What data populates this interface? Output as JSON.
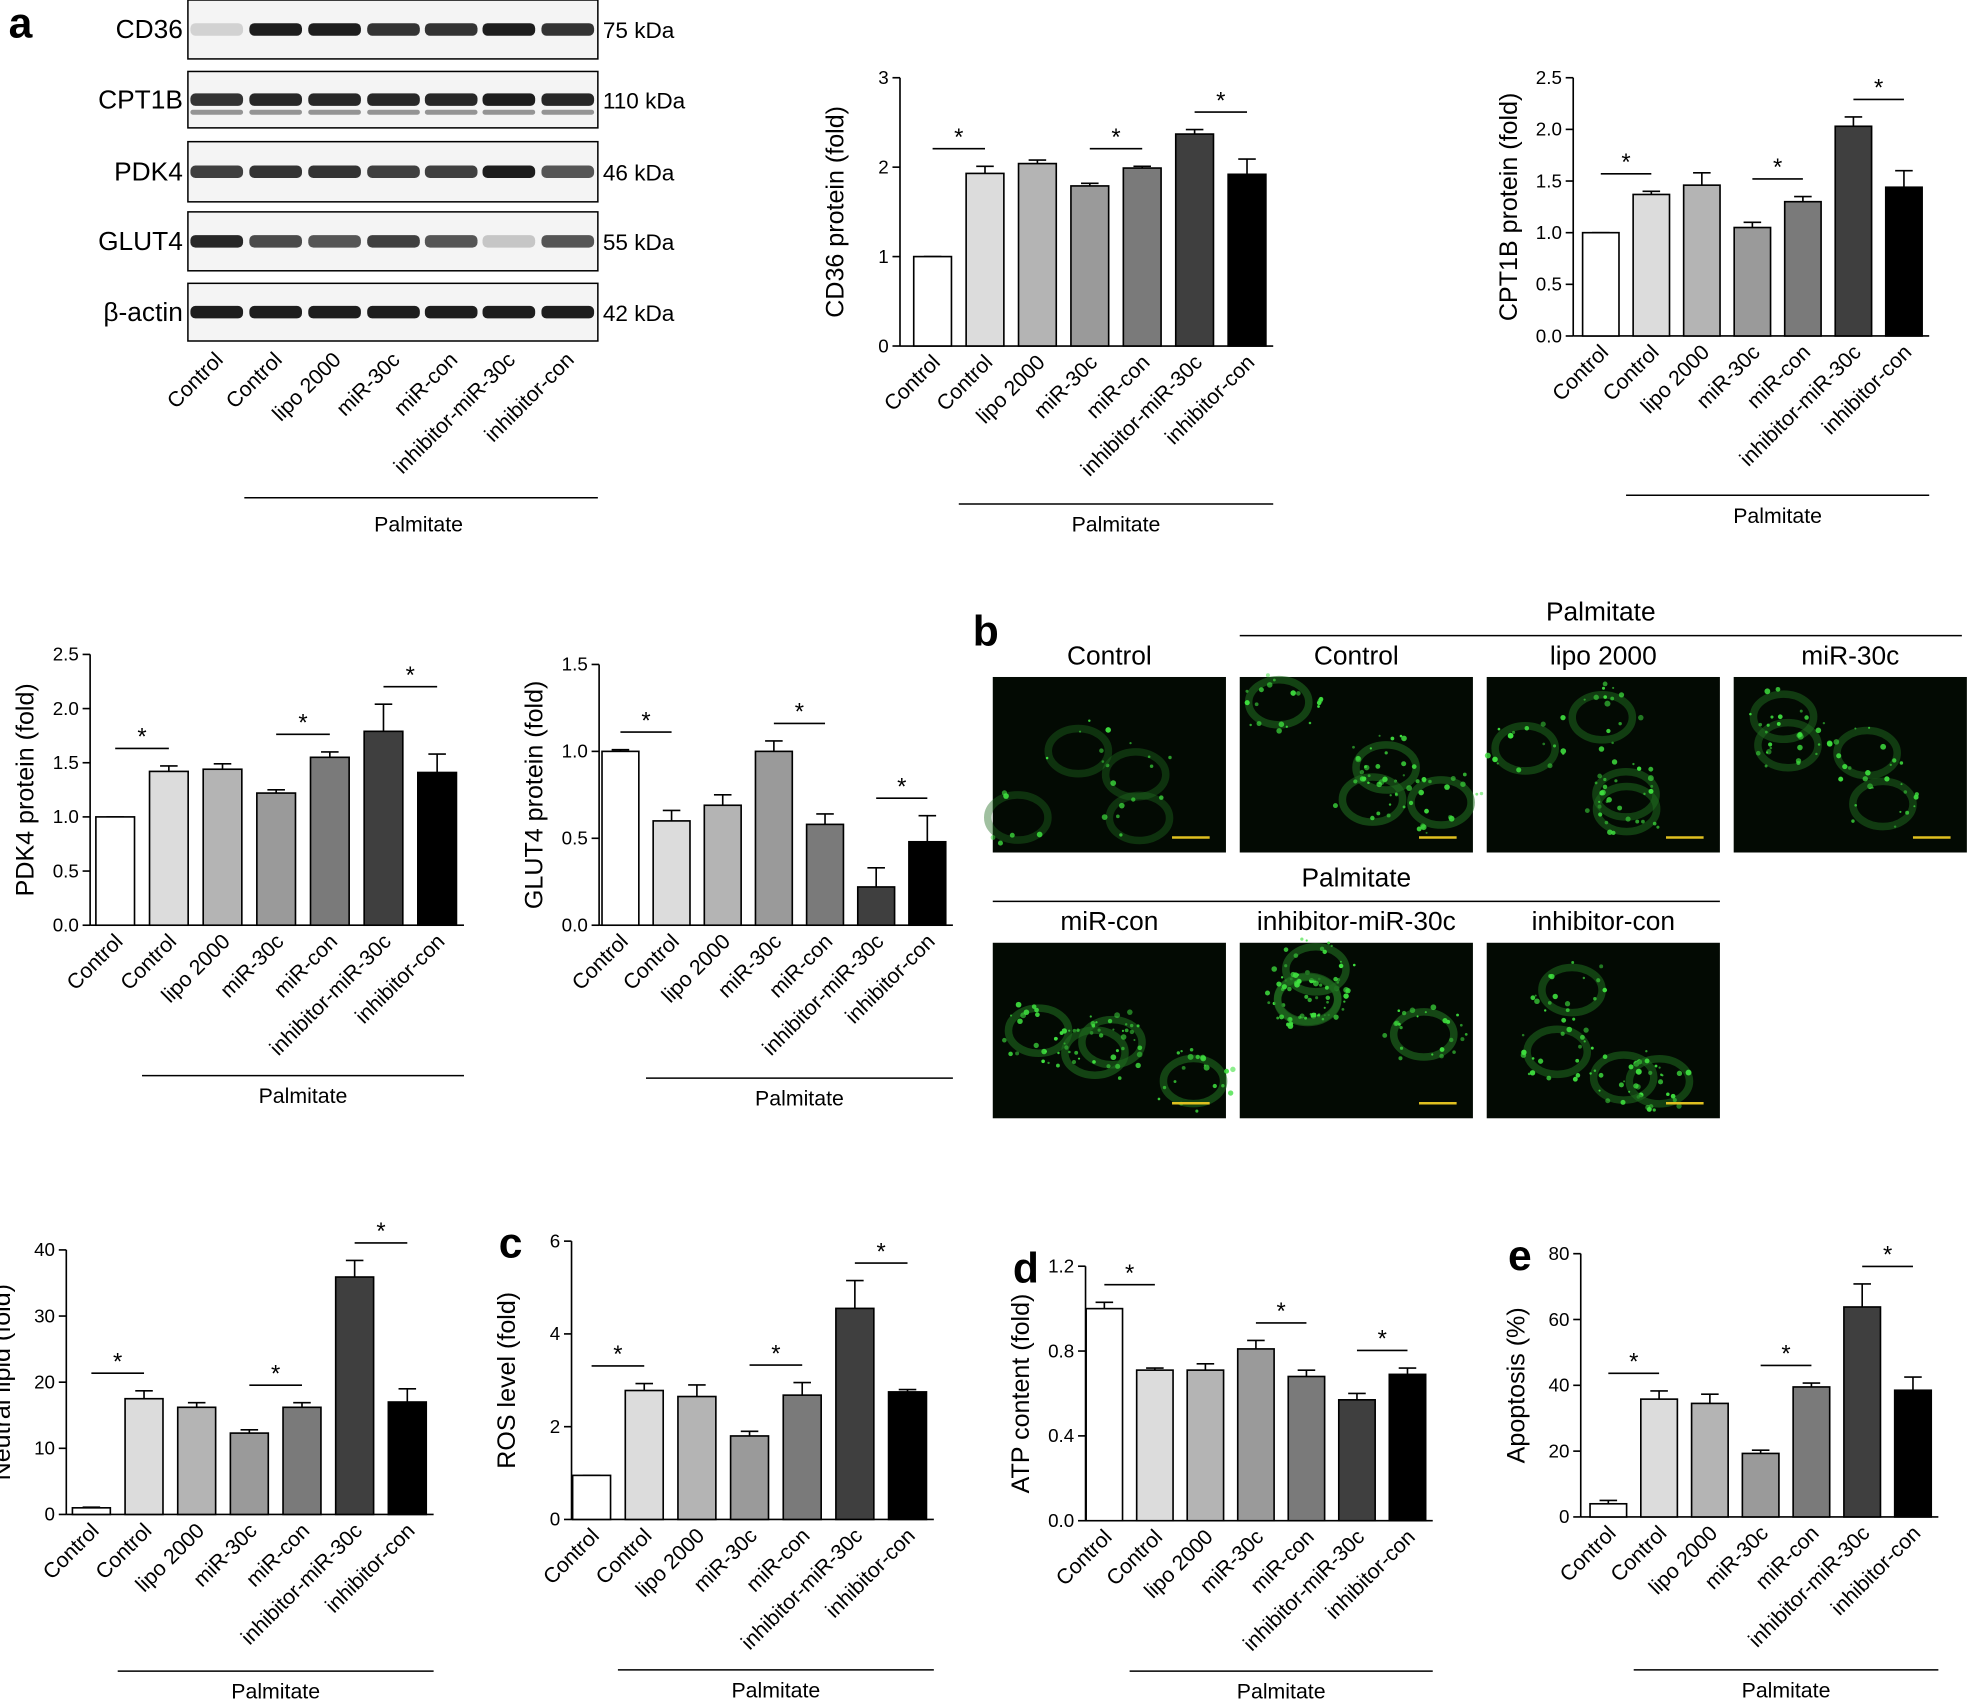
{
  "blot": {
    "panel": "a",
    "proteins": [
      {
        "name": "CD36",
        "size": "75 kDa"
      },
      {
        "name": "CPT1B",
        "size": "110 kDa"
      },
      {
        "name": "PDK4",
        "size": "46 kDa"
      },
      {
        "name": "GLUT4",
        "size": "55 kDa"
      },
      {
        "name": "β-actin",
        "size": "42 kDa"
      }
    ],
    "lanes": [
      "Control",
      "Control",
      "lipo 2000",
      "miR-30c",
      "miR-con",
      "inhibitor-miR-30c",
      "inhibitor-con"
    ],
    "group": {
      "label": "Palmitate",
      "from": 1,
      "to": 6
    }
  },
  "micrographs": {
    "panel": "b",
    "images": [
      "Control",
      "Control",
      "lipo 2000",
      "miR-30c",
      "miR-con",
      "inhibitor-miR-30c",
      "inhibitor-con"
    ],
    "groups": [
      {
        "label": "Palmitate",
        "from": 1,
        "to": 3
      },
      {
        "label": "Palmitate",
        "from": 4,
        "to": 6
      }
    ]
  },
  "chart_data": [
    {
      "type": "bar",
      "ylabel": "CD36 protein (fold)",
      "categories": [
        "Control",
        "Control",
        "lipo 2000",
        "miR-30c",
        "miR-con",
        "inhibitor-miR-30c",
        "inhibitor-con"
      ],
      "values": [
        1,
        1.93,
        2.04,
        1.79,
        1.99,
        2.37,
        1.92
      ],
      "errors": [
        0,
        0.08,
        0.04,
        0.03,
        0.02,
        0.05,
        0.17
      ],
      "colors": [
        "#ffffff",
        "#dcdcdc",
        "#b4b4b4",
        "#9a9a9a",
        "#7a7a7a",
        "#3f3f3f",
        "#000000"
      ],
      "ylim": [
        0,
        3
      ],
      "yticks": [
        0,
        1,
        2,
        3
      ],
      "brackets": [
        {
          "between": [
            0,
            1
          ],
          "label": "*"
        },
        {
          "between": [
            3,
            4
          ],
          "label": "*"
        },
        {
          "between": [
            5,
            6
          ],
          "label": "*"
        }
      ],
      "group": {
        "label": "Palmitate",
        "from": 1,
        "to": 6
      }
    },
    {
      "type": "bar",
      "ylabel": "CPT1B protein (fold)",
      "categories": [
        "Control",
        "Control",
        "lipo 2000",
        "miR-30c",
        "miR-con",
        "inhibitor-miR-30c",
        "inhibitor-con"
      ],
      "values": [
        1,
        1.37,
        1.46,
        1.05,
        1.3,
        2.03,
        1.44
      ],
      "errors": [
        0,
        0.03,
        0.12,
        0.05,
        0.05,
        0.09,
        0.16
      ],
      "colors": [
        "#ffffff",
        "#dcdcdc",
        "#b4b4b4",
        "#9a9a9a",
        "#7a7a7a",
        "#3f3f3f",
        "#000000"
      ],
      "ylim": [
        0,
        2.5
      ],
      "yticks": [
        {
          "value": 0,
          "label": "0.0"
        },
        0.5,
        {
          "value": 1,
          "label": "1.0"
        },
        1.5,
        {
          "value": 2,
          "label": "2.0"
        },
        2.5
      ],
      "brackets": [
        {
          "between": [
            0,
            1
          ],
          "label": "*"
        },
        {
          "between": [
            3,
            4
          ],
          "label": "*"
        },
        {
          "between": [
            5,
            6
          ],
          "label": "*"
        }
      ],
      "group": {
        "label": "Palmitate",
        "from": 1,
        "to": 6
      }
    },
    {
      "type": "bar",
      "ylabel": "PDK4 protein (fold)",
      "categories": [
        "Control",
        "Control",
        "lipo 2000",
        "miR-30c",
        "miR-con",
        "inhibitor-miR-30c",
        "inhibitor-con"
      ],
      "values": [
        1,
        1.42,
        1.44,
        1.22,
        1.55,
        1.79,
        1.41
      ],
      "errors": [
        0,
        0.05,
        0.05,
        0.03,
        0.05,
        0.25,
        0.17
      ],
      "colors": [
        "#ffffff",
        "#dcdcdc",
        "#b4b4b4",
        "#9a9a9a",
        "#7a7a7a",
        "#3f3f3f",
        "#000000"
      ],
      "ylim": [
        0,
        2.5
      ],
      "yticks": [
        {
          "value": 0,
          "label": "0.0"
        },
        0.5,
        {
          "value": 1,
          "label": "1.0"
        },
        1.5,
        {
          "value": 2,
          "label": "2.0"
        },
        2.5
      ],
      "brackets": [
        {
          "between": [
            0,
            1
          ],
          "label": "*"
        },
        {
          "between": [
            3,
            4
          ],
          "label": "*"
        },
        {
          "between": [
            5,
            6
          ],
          "label": "*"
        }
      ],
      "group": {
        "label": "Palmitate",
        "from": 1,
        "to": 6
      }
    },
    {
      "type": "bar",
      "ylabel": "GLUT4 protein (fold)",
      "categories": [
        "Control",
        "Control",
        "lipo 2000",
        "miR-30c",
        "miR-con",
        "inhibitor-miR-30c",
        "inhibitor-con"
      ],
      "values": [
        1,
        0.6,
        0.69,
        1,
        0.58,
        0.22,
        0.48
      ],
      "errors": [
        0.01,
        0.06,
        0.06,
        0.06,
        0.06,
        0.11,
        0.15
      ],
      "colors": [
        "#ffffff",
        "#dcdcdc",
        "#b4b4b4",
        "#9a9a9a",
        "#7a7a7a",
        "#3f3f3f",
        "#000000"
      ],
      "ylim": [
        0,
        1.5
      ],
      "yticks": [
        {
          "value": 0,
          "label": "0.0"
        },
        0.5,
        {
          "value": 1,
          "label": "1.0"
        },
        1.5
      ],
      "brackets": [
        {
          "between": [
            0,
            1
          ],
          "label": "*"
        },
        {
          "between": [
            3,
            4
          ],
          "label": "*"
        },
        {
          "between": [
            5,
            6
          ],
          "label": "*"
        }
      ],
      "group": {
        "label": "Palmitate",
        "from": 1,
        "to": 6
      }
    },
    {
      "type": "bar",
      "ylabel": "Neutral lipid (fold)",
      "categories": [
        "Control",
        "Control",
        "lipo 2000",
        "miR-30c",
        "miR-con",
        "inhibitor-miR-30c",
        "inhibitor-con"
      ],
      "values": [
        1,
        17.5,
        16.2,
        12.3,
        16.2,
        35.9,
        17
      ],
      "errors": [
        0.1,
        1.2,
        0.7,
        0.5,
        0.7,
        2.5,
        2
      ],
      "colors": [
        "#ffffff",
        "#dcdcdc",
        "#b4b4b4",
        "#9a9a9a",
        "#7a7a7a",
        "#3f3f3f",
        "#000000"
      ],
      "ylim": [
        0,
        40
      ],
      "yticks": [
        0,
        10,
        20,
        30,
        40
      ],
      "brackets": [
        {
          "between": [
            0,
            1
          ],
          "label": "*"
        },
        {
          "between": [
            3,
            4
          ],
          "label": "*"
        },
        {
          "between": [
            5,
            6
          ],
          "label": "*"
        }
      ],
      "group": {
        "label": "Palmitate",
        "from": 1,
        "to": 6
      }
    },
    {
      "type": "bar",
      "panel": "c",
      "ylabel": "ROS level (fold)",
      "categories": [
        "Control",
        "Control",
        "lipo 2000",
        "miR-30c",
        "miR-con",
        "inhibitor-miR-30c",
        "inhibitor-con"
      ],
      "values": [
        0.95,
        2.78,
        2.65,
        1.8,
        2.68,
        4.55,
        2.75
      ],
      "errors": [
        0,
        0.15,
        0.25,
        0.1,
        0.27,
        0.6,
        0.05
      ],
      "colors": [
        "#ffffff",
        "#dcdcdc",
        "#b4b4b4",
        "#9a9a9a",
        "#7a7a7a",
        "#3f3f3f",
        "#000000"
      ],
      "ylim": [
        0,
        6
      ],
      "yticks": [
        0,
        2,
        4,
        6
      ],
      "brackets": [
        {
          "between": [
            0,
            1
          ],
          "label": "*"
        },
        {
          "between": [
            3,
            4
          ],
          "label": "*"
        },
        {
          "between": [
            5,
            6
          ],
          "label": "*"
        }
      ],
      "group": {
        "label": "Palmitate",
        "from": 1,
        "to": 6
      }
    },
    {
      "type": "bar",
      "panel": "d",
      "ylabel": "ATP content (fold)",
      "categories": [
        "Control",
        "Control",
        "lipo 2000",
        "miR-30c",
        "miR-con",
        "inhibitor-miR-30c",
        "inhibitor-con"
      ],
      "values": [
        1,
        0.71,
        0.71,
        0.81,
        0.68,
        0.57,
        0.69
      ],
      "errors": [
        0.03,
        0.01,
        0.03,
        0.04,
        0.03,
        0.03,
        0.03
      ],
      "colors": [
        "#ffffff",
        "#dcdcdc",
        "#b4b4b4",
        "#9a9a9a",
        "#7a7a7a",
        "#3f3f3f",
        "#000000"
      ],
      "ylim": [
        0,
        1.2
      ],
      "yticks": [
        {
          "value": 0,
          "label": "0.0"
        },
        0.4,
        0.8,
        1.2
      ],
      "brackets": [
        {
          "between": [
            0,
            1
          ],
          "label": "*"
        },
        {
          "between": [
            3,
            4
          ],
          "label": "*"
        },
        {
          "between": [
            5,
            6
          ],
          "label": "*"
        }
      ],
      "group": {
        "label": "Palmitate",
        "from": 1,
        "to": 6
      }
    },
    {
      "type": "bar",
      "panel": "e",
      "ylabel": "Apoptosis (%)",
      "categories": [
        "Control",
        "Control",
        "lipo 2000",
        "miR-30c",
        "miR-con",
        "inhibitor-miR-30c",
        "inhibitor-con"
      ],
      "values": [
        4,
        35.8,
        34.5,
        19.3,
        39.5,
        63.8,
        38.5
      ],
      "errors": [
        1,
        2.5,
        2.8,
        1,
        1.2,
        7,
        4
      ],
      "colors": [
        "#ffffff",
        "#dcdcdc",
        "#b4b4b4",
        "#9a9a9a",
        "#7a7a7a",
        "#3f3f3f",
        "#000000"
      ],
      "ylim": [
        0,
        80
      ],
      "yticks": [
        0,
        20,
        40,
        60,
        80
      ],
      "brackets": [
        {
          "between": [
            0,
            1
          ],
          "label": "*"
        },
        {
          "between": [
            3,
            4
          ],
          "label": "*"
        },
        {
          "between": [
            5,
            6
          ],
          "label": "*"
        }
      ],
      "group": {
        "label": "Palmitate",
        "from": 1,
        "to": 6
      }
    }
  ]
}
